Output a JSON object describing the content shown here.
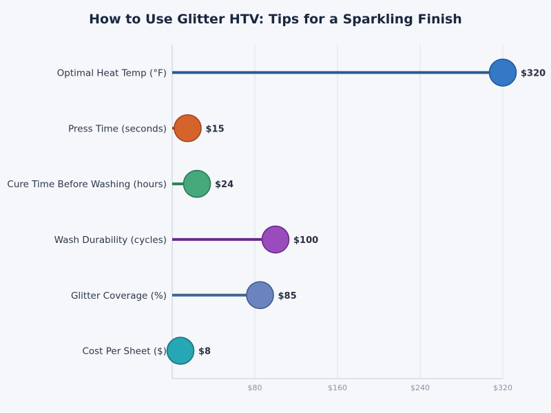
{
  "chart_data": {
    "type": "lollipop",
    "title": "How to Use Glitter HTV: Tips for a Sparkling Finish",
    "xlabel": "",
    "ylabel": "",
    "xlim": [
      0,
      320
    ],
    "xticks": [
      80,
      160,
      240,
      320
    ],
    "xtick_labels": [
      "$80",
      "$160",
      "$240",
      "$320"
    ],
    "grid": "vertical",
    "categories": [
      "Optimal Heat Temp (°F)",
      "Press Time (seconds)",
      "Cure Time Before Washing (hours)",
      "Wash Durability (cycles)",
      "Glitter Coverage (%)",
      "Cost Per Sheet ($)"
    ],
    "values": [
      320,
      15,
      24,
      100,
      85,
      8
    ],
    "data_labels": [
      "$320",
      "$15",
      "$24",
      "$100",
      "$85",
      "$8"
    ],
    "colors": [
      {
        "fill": "#3478c6",
        "stroke": "#1f5a99",
        "stem": "#2a5a90"
      },
      {
        "fill": "#d4642c",
        "stroke": "#a04418",
        "stem": "#a04418"
      },
      {
        "fill": "#46a97c",
        "stroke": "#257a54",
        "stem": "#2a8058"
      },
      {
        "fill": "#9a4bbd",
        "stroke": "#6a2a8a",
        "stem": "#6a2a8a"
      },
      {
        "fill": "#6b84c0",
        "stroke": "#3d5a8c",
        "stem": "#44638f"
      },
      {
        "fill": "#27a6b4",
        "stroke": "#18727e",
        "stem": "#18727e"
      }
    ]
  }
}
